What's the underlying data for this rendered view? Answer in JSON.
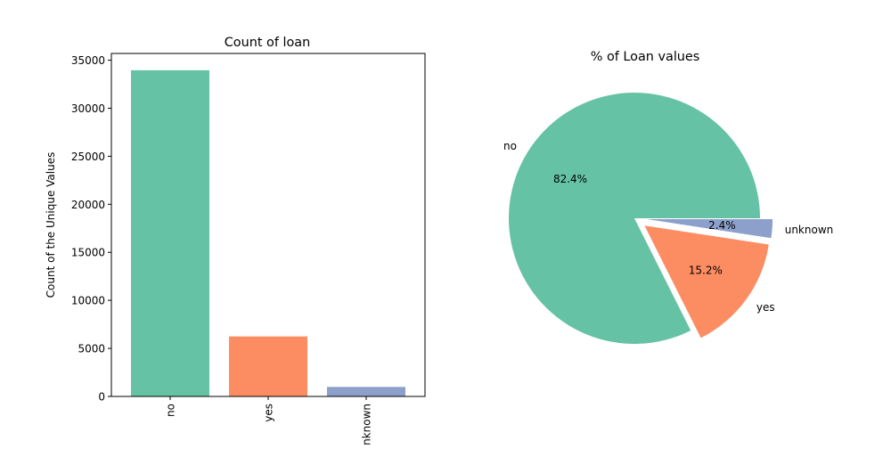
{
  "chart_data": [
    {
      "type": "bar",
      "title": "Count of loan",
      "xlabel": "",
      "ylabel": "Count of the Unique Values",
      "categories": [
        "no",
        "yes",
        "unknown"
      ],
      "values": [
        33950,
        6248,
        990
      ],
      "colors": [
        "#66c2a5",
        "#fc8d62",
        "#8da0cb"
      ],
      "ylim": [
        0,
        35700
      ],
      "yticks": [
        0,
        5000,
        10000,
        15000,
        20000,
        25000,
        30000,
        35000
      ],
      "ytick_labels": [
        "0",
        "5000",
        "10000",
        "15000",
        "20000",
        "25000",
        "30000",
        "35000"
      ],
      "xtick_rotation": "vertical",
      "grid": false
    },
    {
      "type": "pie",
      "title": "% of Loan values",
      "labels": [
        "no",
        "yes",
        "unknown"
      ],
      "values": [
        82.4,
        15.2,
        2.4
      ],
      "percent_labels": [
        "82.4%",
        "15.2%",
        "2.4%"
      ],
      "colors": [
        "#66c2a5",
        "#fc8d62",
        "#8da0cb"
      ],
      "explode": [
        0.0,
        0.1,
        0.1
      ],
      "start_angle": 0,
      "direction": "counterclockwise"
    }
  ]
}
